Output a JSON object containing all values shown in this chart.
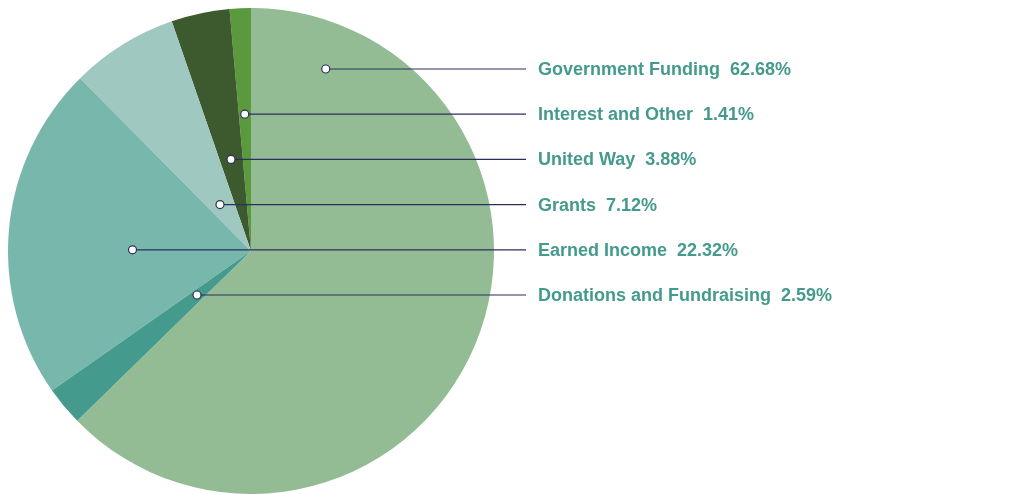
{
  "chart_data": {
    "type": "pie",
    "categories": [
      "Government Funding",
      "Interest and Other",
      "United Way",
      "Grants",
      "Earned Income",
      "Donations and Fundraising"
    ],
    "values": [
      62.68,
      1.41,
      3.88,
      7.12,
      22.32,
      2.59
    ],
    "colors": [
      "#94bc94",
      "#5a9a3c",
      "#3c5a2e",
      "#9ec8c0",
      "#78b8ac",
      "#459a8e"
    ],
    "value_labels": [
      "62.68%",
      "1.41%",
      "3.88%",
      "7.12%",
      "22.32%",
      "2.59%"
    ]
  }
}
